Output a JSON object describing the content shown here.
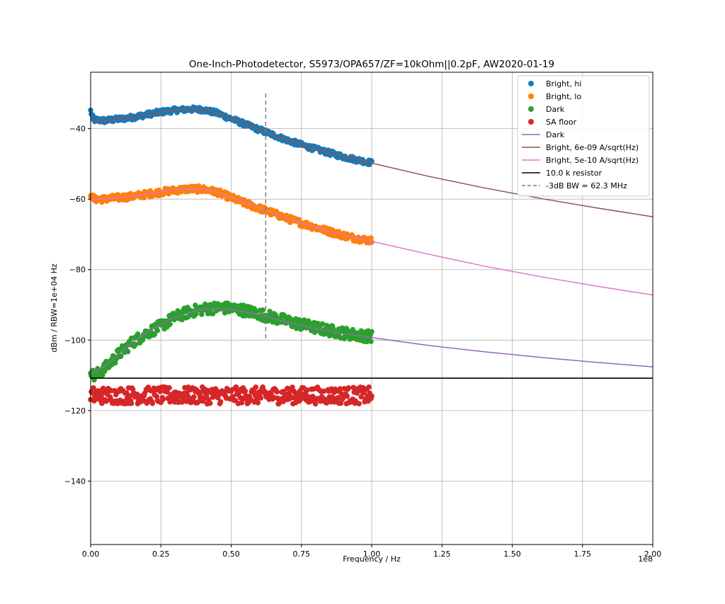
{
  "chart_data": {
    "type": "scatter",
    "title": "One-Inch-Photodetector, S5973/OPA657/ZF=10kOhm||0.2pF, AW2020-01-19",
    "xlabel": "Frequency / Hz",
    "ylabel": "dBm / RBW=1e+04 Hz",
    "x_offset_label": "1e8",
    "xlim": [
      0,
      2.0
    ],
    "ylim": [
      -158,
      -24
    ],
    "grid": true,
    "legend_position": "upper-right",
    "x_ticks": [
      {
        "value": 0.0,
        "label": "0.00"
      },
      {
        "value": 0.25,
        "label": "0.25"
      },
      {
        "value": 0.5,
        "label": "0.50"
      },
      {
        "value": 0.75,
        "label": "0.75"
      },
      {
        "value": 1.0,
        "label": "1.00"
      },
      {
        "value": 1.25,
        "label": "1.25"
      },
      {
        "value": 1.5,
        "label": "1.50"
      },
      {
        "value": 1.75,
        "label": "1.75"
      },
      {
        "value": 2.0,
        "label": "2.00"
      }
    ],
    "y_ticks": [
      {
        "value": -40,
        "label": "−40"
      },
      {
        "value": -60,
        "label": "−60"
      },
      {
        "value": -80,
        "label": "−80"
      },
      {
        "value": -100,
        "label": "−100"
      },
      {
        "value": -120,
        "label": "−120"
      },
      {
        "value": -140,
        "label": "−140"
      }
    ],
    "scatter_series": [
      {
        "name": "Bright, hi",
        "color": "#1f77b4",
        "x_range": [
          0,
          1.0
        ],
        "jitter": 0.35,
        "profile": [
          [
            0.0,
            -35.0
          ],
          [
            0.01,
            -37.5
          ],
          [
            0.05,
            -37.7
          ],
          [
            0.1,
            -37.3
          ],
          [
            0.15,
            -36.8
          ],
          [
            0.2,
            -36.0
          ],
          [
            0.25,
            -35.3
          ],
          [
            0.3,
            -34.8
          ],
          [
            0.35,
            -34.5
          ],
          [
            0.4,
            -34.6
          ],
          [
            0.45,
            -35.6
          ],
          [
            0.5,
            -37.2
          ],
          [
            0.55,
            -38.8
          ],
          [
            0.6,
            -40.3
          ],
          [
            0.65,
            -41.8
          ],
          [
            0.7,
            -43.3
          ],
          [
            0.75,
            -44.6
          ],
          [
            0.8,
            -45.8
          ],
          [
            0.85,
            -46.9
          ],
          [
            0.9,
            -48.0
          ],
          [
            0.95,
            -48.9
          ],
          [
            1.0,
            -49.7
          ]
        ]
      },
      {
        "name": "Bright, lo",
        "color": "#ff7f0e",
        "x_range": [
          0,
          1.0
        ],
        "jitter": 0.45,
        "profile": [
          [
            0.0,
            -58.5
          ],
          [
            0.01,
            -60.0
          ],
          [
            0.05,
            -60.0
          ],
          [
            0.1,
            -59.6
          ],
          [
            0.15,
            -59.2
          ],
          [
            0.2,
            -58.6
          ],
          [
            0.25,
            -58.0
          ],
          [
            0.3,
            -57.5
          ],
          [
            0.35,
            -57.1
          ],
          [
            0.4,
            -57.2
          ],
          [
            0.45,
            -58.0
          ],
          [
            0.5,
            -59.6
          ],
          [
            0.55,
            -61.2
          ],
          [
            0.6,
            -62.6
          ],
          [
            0.65,
            -64.0
          ],
          [
            0.7,
            -65.5
          ],
          [
            0.75,
            -66.8
          ],
          [
            0.8,
            -68.0
          ],
          [
            0.85,
            -69.2
          ],
          [
            0.9,
            -70.3
          ],
          [
            0.95,
            -71.2
          ],
          [
            1.0,
            -71.8
          ]
        ]
      },
      {
        "name": "Dark",
        "color": "#2ca02c",
        "x_range": [
          0,
          1.0
        ],
        "jitter": 0.8,
        "profile": [
          [
            0.0,
            -108.0
          ],
          [
            0.01,
            -110.5
          ],
          [
            0.05,
            -108.0
          ],
          [
            0.1,
            -104.0
          ],
          [
            0.15,
            -100.5
          ],
          [
            0.2,
            -98.0
          ],
          [
            0.25,
            -96.0
          ],
          [
            0.3,
            -93.5
          ],
          [
            0.35,
            -92.0
          ],
          [
            0.4,
            -91.2
          ],
          [
            0.45,
            -90.8
          ],
          [
            0.5,
            -91.0
          ],
          [
            0.55,
            -91.6
          ],
          [
            0.6,
            -92.6
          ],
          [
            0.65,
            -93.6
          ],
          [
            0.7,
            -94.6
          ],
          [
            0.75,
            -95.6
          ],
          [
            0.8,
            -96.5
          ],
          [
            0.85,
            -97.3
          ],
          [
            0.9,
            -98.0
          ],
          [
            0.95,
            -98.6
          ],
          [
            1.0,
            -99.0
          ]
        ]
      },
      {
        "name": "SA floor",
        "color": "#d62728",
        "x_range": [
          0,
          1.0
        ],
        "jitter": 1.2,
        "profile": [
          [
            0.0,
            -115.7
          ],
          [
            1.0,
            -115.7
          ]
        ]
      }
    ],
    "line_series": [
      {
        "name": "Dark",
        "color": "#9467bd",
        "dash": "",
        "points": [
          [
            0.0,
            -109.5
          ],
          [
            0.05,
            -107.5
          ],
          [
            0.1,
            -104.0
          ],
          [
            0.15,
            -100.5
          ],
          [
            0.2,
            -97.8
          ],
          [
            0.25,
            -95.5
          ],
          [
            0.3,
            -93.5
          ],
          [
            0.35,
            -92.2
          ],
          [
            0.4,
            -91.3
          ],
          [
            0.45,
            -91.0
          ],
          [
            0.5,
            -91.3
          ],
          [
            0.55,
            -92.0
          ],
          [
            0.6,
            -92.9
          ],
          [
            0.65,
            -93.9
          ],
          [
            0.7,
            -94.9
          ],
          [
            0.75,
            -95.8
          ],
          [
            0.8,
            -96.7
          ],
          [
            0.85,
            -97.4
          ],
          [
            0.9,
            -98.1
          ],
          [
            0.95,
            -98.7
          ],
          [
            1.0,
            -99.3
          ],
          [
            1.2,
            -101.5
          ],
          [
            1.4,
            -103.3
          ],
          [
            1.6,
            -104.9
          ],
          [
            1.8,
            -106.3
          ],
          [
            2.0,
            -107.6
          ]
        ]
      },
      {
        "name": "Bright, 6e-09 A/sqrt(Hz)",
        "color": "#8c564b",
        "dash": "",
        "points": [
          [
            0.0,
            -37.8
          ],
          [
            0.05,
            -37.8
          ],
          [
            0.1,
            -37.4
          ],
          [
            0.15,
            -36.8
          ],
          [
            0.2,
            -36.0
          ],
          [
            0.25,
            -35.3
          ],
          [
            0.3,
            -34.8
          ],
          [
            0.35,
            -34.6
          ],
          [
            0.4,
            -34.8
          ],
          [
            0.45,
            -35.7
          ],
          [
            0.5,
            -37.2
          ],
          [
            0.55,
            -38.7
          ],
          [
            0.6,
            -40.2
          ],
          [
            0.65,
            -41.7
          ],
          [
            0.7,
            -43.2
          ],
          [
            0.75,
            -44.6
          ],
          [
            0.8,
            -45.8
          ],
          [
            0.85,
            -46.9
          ],
          [
            0.9,
            -48.0
          ],
          [
            0.95,
            -48.9
          ],
          [
            1.0,
            -49.8
          ],
          [
            1.2,
            -53.5
          ],
          [
            1.4,
            -56.8
          ],
          [
            1.6,
            -59.8
          ],
          [
            1.8,
            -62.5
          ],
          [
            2.0,
            -65.0
          ]
        ]
      },
      {
        "name": "Bright, 5e-10 A/sqrt(Hz)",
        "color": "#e377c2",
        "dash": "",
        "points": [
          [
            0.0,
            -60.0
          ],
          [
            0.05,
            -60.0
          ],
          [
            0.1,
            -59.6
          ],
          [
            0.15,
            -59.2
          ],
          [
            0.2,
            -58.6
          ],
          [
            0.25,
            -58.0
          ],
          [
            0.3,
            -57.4
          ],
          [
            0.35,
            -57.1
          ],
          [
            0.4,
            -57.2
          ],
          [
            0.45,
            -58.0
          ],
          [
            0.5,
            -59.5
          ],
          [
            0.55,
            -61.0
          ],
          [
            0.6,
            -62.5
          ],
          [
            0.65,
            -64.0
          ],
          [
            0.7,
            -65.4
          ],
          [
            0.75,
            -66.8
          ],
          [
            0.8,
            -68.0
          ],
          [
            0.85,
            -69.2
          ],
          [
            0.9,
            -70.2
          ],
          [
            0.95,
            -71.2
          ],
          [
            1.0,
            -72.0
          ],
          [
            1.2,
            -75.6
          ],
          [
            1.4,
            -79.0
          ],
          [
            1.6,
            -82.0
          ],
          [
            1.8,
            -84.7
          ],
          [
            2.0,
            -87.2
          ]
        ]
      },
      {
        "name": "10.0 k resistor",
        "color": "#000000",
        "dash": "",
        "points": [
          [
            0.0,
            -110.8
          ],
          [
            2.0,
            -110.8
          ]
        ]
      },
      {
        "name": "-3dB BW = 62.3 MHz",
        "color": "#7f7f7f",
        "dash": "6,4",
        "points": [
          [
            0.623,
            -30.0
          ],
          [
            0.623,
            -100.2
          ]
        ]
      }
    ]
  },
  "legend": {
    "items": [
      {
        "label": "Bright, hi",
        "marker": "dot",
        "color": "#1f77b4"
      },
      {
        "label": "Bright, lo",
        "marker": "dot",
        "color": "#ff7f0e"
      },
      {
        "label": "Dark",
        "marker": "dot",
        "color": "#2ca02c"
      },
      {
        "label": "SA floor",
        "marker": "dot",
        "color": "#d62728"
      },
      {
        "label": "Dark",
        "marker": "line",
        "color": "#9467bd"
      },
      {
        "label": "Bright, 6e-09 A/sqrt(Hz)",
        "marker": "line",
        "color": "#8c564b"
      },
      {
        "label": "Bright, 5e-10 A/sqrt(Hz)",
        "marker": "line",
        "color": "#e377c2"
      },
      {
        "label": "10.0 k resistor",
        "marker": "line",
        "color": "#000000"
      },
      {
        "label": "-3dB BW = 62.3 MHz",
        "marker": "dashed",
        "color": "#7f7f7f"
      }
    ]
  }
}
